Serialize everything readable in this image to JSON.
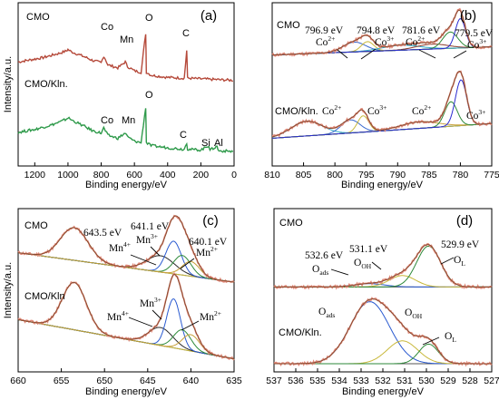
{
  "chart_data": [
    {
      "panel": "(a)",
      "type": "line",
      "xlabel": "Binding energy/eV",
      "ylabel": "Intensity/a.u.",
      "xlim": [
        1300,
        0
      ],
      "ticks": [
        "1200",
        "1000",
        "800",
        "600",
        "400",
        "200",
        "0"
      ],
      "tick_values": [
        1200,
        1000,
        800,
        600,
        400,
        200,
        0
      ],
      "series": [
        {
          "name": "CMO",
          "color": "#b5493a",
          "offset": 0.63,
          "points": [
            [
              1300,
              0.26
            ],
            [
              1250,
              0.28
            ],
            [
              1200,
              0.3
            ],
            [
              1150,
              0.32
            ],
            [
              1100,
              0.35
            ],
            [
              1050,
              0.38
            ],
            [
              1010,
              0.41
            ],
            [
              1000,
              0.43
            ],
            [
              980,
              0.4
            ],
            [
              900,
              0.33
            ],
            [
              850,
              0.28
            ],
            [
              800,
              0.25
            ],
            [
              785,
              0.34
            ],
            [
              775,
              0.3
            ],
            [
              760,
              0.22
            ],
            [
              700,
              0.18
            ],
            [
              655,
              0.26
            ],
            [
              642,
              0.2
            ],
            [
              600,
              0.14
            ],
            [
              560,
              0.12
            ],
            [
              532,
              0.65
            ],
            [
              528,
              0.12
            ],
            [
              500,
              0.08
            ],
            [
              400,
              0.05
            ],
            [
              300,
              0.04
            ],
            [
              285,
              0.42
            ],
            [
              280,
              0.04
            ],
            [
              200,
              0.03
            ],
            [
              100,
              0.02
            ],
            [
              0,
              0.01
            ]
          ]
        },
        {
          "name": "CMO/Kln.",
          "color": "#2e9a4a",
          "offset": 0.1,
          "points": [
            [
              1300,
              0.28
            ],
            [
              1250,
              0.3
            ],
            [
              1200,
              0.32
            ],
            [
              1150,
              0.35
            ],
            [
              1100,
              0.38
            ],
            [
              1050,
              0.42
            ],
            [
              1010,
              0.46
            ],
            [
              1000,
              0.48
            ],
            [
              980,
              0.45
            ],
            [
              900,
              0.36
            ],
            [
              850,
              0.3
            ],
            [
              800,
              0.27
            ],
            [
              785,
              0.34
            ],
            [
              775,
              0.3
            ],
            [
              760,
              0.24
            ],
            [
              700,
              0.2
            ],
            [
              655,
              0.27
            ],
            [
              642,
              0.22
            ],
            [
              600,
              0.16
            ],
            [
              560,
              0.14
            ],
            [
              532,
              0.62
            ],
            [
              528,
              0.14
            ],
            [
              500,
              0.1
            ],
            [
              400,
              0.07
            ],
            [
              300,
              0.05
            ],
            [
              285,
              0.14
            ],
            [
              280,
              0.05
            ],
            [
              200,
              0.04
            ],
            [
              152,
              0.1
            ],
            [
              145,
              0.04
            ],
            [
              102,
              0.09
            ],
            [
              95,
              0.03
            ],
            [
              0,
              0.02
            ]
          ]
        }
      ],
      "labels": {
        "cmo": "CMO",
        "kln": "CMO/Kln.",
        "co1": "Co",
        "mn1": "Mn",
        "o1": "O",
        "c1": "C",
        "co2": "Co",
        "mn2": "Mn",
        "o2": "O",
        "c2": "C",
        "si": "Si",
        "al": "Al",
        "letter": "(a)"
      }
    },
    {
      "panel": "(b)",
      "type": "line",
      "xlabel": "Binding energy/eV",
      "xlim": [
        810,
        775
      ],
      "ticks": [
        "810",
        "805",
        "800",
        "795",
        "790",
        "785",
        "780",
        "775"
      ],
      "tick_values": [
        810,
        805,
        800,
        795,
        790,
        785,
        780,
        775
      ],
      "peaks_top": [
        {
          "center": 796.9,
          "label": "796.9 eV",
          "ion": "Co",
          "charge": "2+"
        },
        {
          "center": 794.8,
          "label": "794.8 eV",
          "ion": "Co",
          "charge": "3+"
        },
        {
          "center": 781.6,
          "label": "781.6 eV",
          "ion": "Co",
          "charge": "2+"
        },
        {
          "center": 779.5,
          "label": "779.5 eV",
          "ion": "Co",
          "charge": "3+"
        }
      ],
      "bottom_ions": [
        {
          "ion": "Co",
          "charge": "2+"
        },
        {
          "ion": "Co",
          "charge": "3+"
        },
        {
          "ion": "Co",
          "charge": "2+"
        },
        {
          "ion": "Co",
          "charge": "3+"
        }
      ],
      "labels": {
        "cmo": "CMO",
        "kln": "CMO/Kln.",
        "letter": "(b)"
      }
    },
    {
      "panel": "(c)",
      "type": "line",
      "xlabel": "Binding energy/eV",
      "ylabel": "Intensity/a.u.",
      "xlim": [
        660,
        635
      ],
      "ticks": [
        "660",
        "655",
        "650",
        "645",
        "640",
        "635"
      ],
      "tick_values": [
        660,
        655,
        650,
        645,
        640,
        635
      ],
      "peaks_top": [
        {
          "center": 643.5,
          "label": "643.5 eV",
          "ion": "Mn",
          "charge": "4+"
        },
        {
          "center": 641.1,
          "label": "641.1 eV",
          "ion": "Mn",
          "charge": "3+"
        },
        {
          "center": 640.1,
          "label": "640.1 eV",
          "ion": "Mn",
          "charge": "2+"
        }
      ],
      "bottom_ions": [
        {
          "ion": "Mn",
          "charge": "4+"
        },
        {
          "ion": "Mn",
          "charge": "3+"
        },
        {
          "ion": "Mn",
          "charge": "2+"
        }
      ],
      "labels": {
        "cmo": "CMO",
        "kln": "CMO/Kln",
        "letter": "(c)"
      }
    },
    {
      "panel": "(d)",
      "type": "line",
      "xlabel": "Binding energy/eV",
      "xlim": [
        537,
        527
      ],
      "ticks": [
        "537",
        "536",
        "535",
        "534",
        "533",
        "532",
        "531",
        "530",
        "529",
        "528",
        "527"
      ],
      "tick_values": [
        537,
        536,
        535,
        534,
        533,
        532,
        531,
        530,
        529,
        528,
        527
      ],
      "peaks_top": [
        {
          "center": 532.6,
          "label": "532.6 eV",
          "species": "O",
          "sub": "ads"
        },
        {
          "center": 531.1,
          "label": "531.1 eV",
          "species": "O",
          "sub": "OH"
        },
        {
          "center": 529.9,
          "label": "529.9 eV",
          "species": "O",
          "sub": "L"
        }
      ],
      "bottom_species": [
        {
          "species": "O",
          "sub": "ads"
        },
        {
          "species": "O",
          "sub": "OH"
        },
        {
          "species": "O",
          "sub": "L"
        }
      ],
      "labels": {
        "cmo": "CMO",
        "kln": "CMO/Kln.",
        "letter": "(d)"
      }
    }
  ]
}
